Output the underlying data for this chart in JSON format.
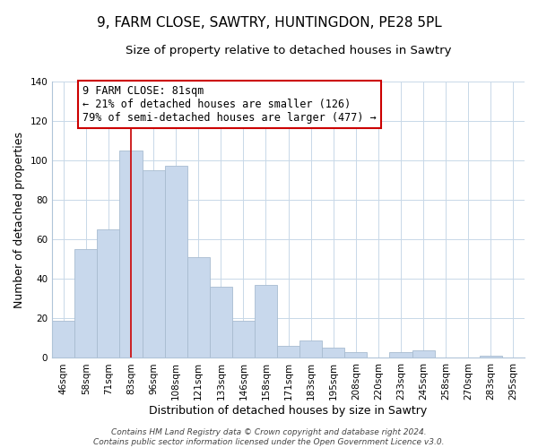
{
  "title": "9, FARM CLOSE, SAWTRY, HUNTINGDON, PE28 5PL",
  "subtitle": "Size of property relative to detached houses in Sawtry",
  "xlabel": "Distribution of detached houses by size in Sawtry",
  "ylabel": "Number of detached properties",
  "bar_labels": [
    "46sqm",
    "58sqm",
    "71sqm",
    "83sqm",
    "96sqm",
    "108sqm",
    "121sqm",
    "133sqm",
    "146sqm",
    "158sqm",
    "171sqm",
    "183sqm",
    "195sqm",
    "208sqm",
    "220sqm",
    "233sqm",
    "245sqm",
    "258sqm",
    "270sqm",
    "283sqm",
    "295sqm"
  ],
  "bar_values": [
    19,
    55,
    65,
    105,
    95,
    97,
    51,
    36,
    19,
    37,
    6,
    9,
    5,
    3,
    0,
    3,
    4,
    0,
    0,
    1,
    0
  ],
  "bar_color": "#c8d8ec",
  "bar_edge_color": "#a8bcd0",
  "vline_x_index": 3,
  "vline_color": "#cc0000",
  "ylim": [
    0,
    140
  ],
  "yticks": [
    0,
    20,
    40,
    60,
    80,
    100,
    120,
    140
  ],
  "annotation_text": "9 FARM CLOSE: 81sqm\n← 21% of detached houses are smaller (126)\n79% of semi-detached houses are larger (477) →",
  "annotation_box_color": "#ffffff",
  "annotation_box_edge_color": "#cc0000",
  "footer_line1": "Contains HM Land Registry data © Crown copyright and database right 2024.",
  "footer_line2": "Contains public sector information licensed under the Open Government Licence v3.0.",
  "title_fontsize": 11,
  "subtitle_fontsize": 9.5,
  "xlabel_fontsize": 9,
  "ylabel_fontsize": 9,
  "tick_fontsize": 7.5,
  "footer_fontsize": 6.5,
  "annotation_fontsize": 8.5,
  "grid_color": "#c8d8e8",
  "spine_color": "#b0c4d8"
}
